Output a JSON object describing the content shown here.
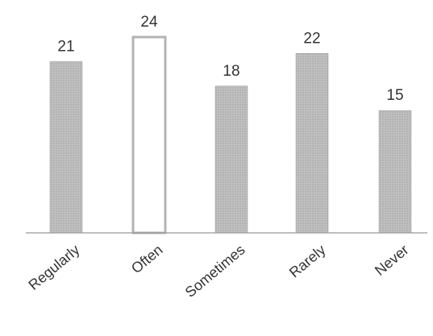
{
  "chart_data": {
    "type": "bar",
    "title": "",
    "xlabel": "",
    "ylabel": "",
    "categories": [
      "Regularly",
      "Often",
      "Sometimes",
      "Rarely",
      "Never"
    ],
    "values": [
      21,
      24,
      18,
      22,
      15
    ],
    "data_labels": [
      "21",
      "24",
      "18",
      "22",
      "15"
    ],
    "highlight": [
      false,
      true,
      false,
      false,
      false
    ],
    "ylim": [
      0,
      24
    ],
    "grid": false,
    "legend": "none",
    "colors": {
      "bar_fill": "#b3b3b3",
      "bar_stroke": "#9a9a9a",
      "highlight_fill": "#ffffff",
      "highlight_stroke": "#b3b3b3",
      "axis": "#999999",
      "text": "#333333"
    }
  }
}
